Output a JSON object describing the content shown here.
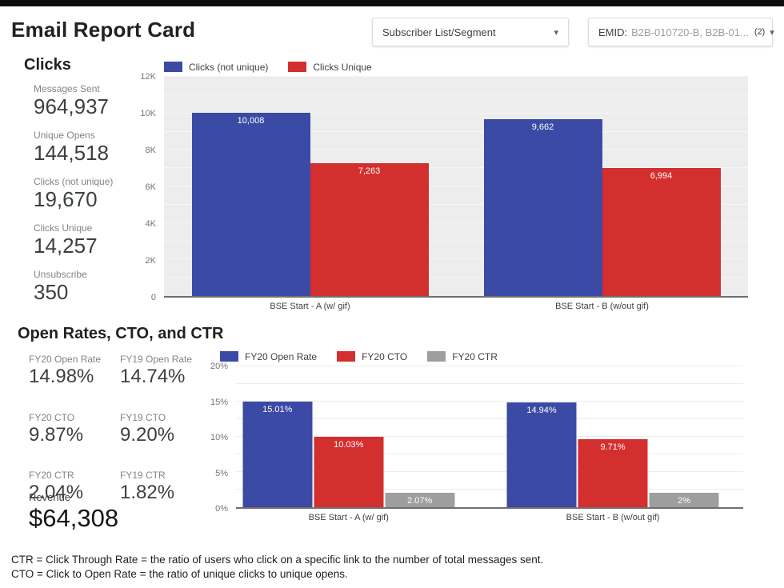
{
  "header": {
    "title": "Email Report Card"
  },
  "filters": {
    "subscriber_label": "Subscriber List/Segment",
    "emid_label": "EMID:",
    "emid_value": "B2B-010720-B, B2B-01...",
    "emid_count": "(2)",
    "caret": "▾"
  },
  "clicks_section": {
    "heading": "Clicks",
    "stats": [
      {
        "label": "Messages Sent",
        "value": "964,937"
      },
      {
        "label": "Unique Opens",
        "value": "144,518"
      },
      {
        "label": "Clicks (not unique)",
        "value": "19,670"
      },
      {
        "label": "Clicks Unique",
        "value": "14,257"
      },
      {
        "label": "Unsubscribe",
        "value": "350"
      }
    ]
  },
  "rates_section": {
    "heading": "Open Rates, CTO, and CTR",
    "stats": [
      {
        "label": "FY20 Open Rate",
        "value": "14.98%"
      },
      {
        "label": "FY19 Open Rate",
        "value": "14.74%"
      },
      {
        "label": "FY20 CTO",
        "value": "9.87%"
      },
      {
        "label": "FY19 CTO",
        "value": "9.20%"
      },
      {
        "label": "FY20 CTR",
        "value": "2.04%"
      },
      {
        "label": "FY19 CTR",
        "value": "1.82%"
      }
    ],
    "revenue": {
      "label": "Revenue",
      "value": "$64,308"
    }
  },
  "footnotes": [
    "CTR = Click Through Rate = the ratio of users who click on a specific link to the number of total messages sent.",
    "CTO = Click to Open Rate = the ratio of unique clicks to unique opens."
  ],
  "chart_data": [
    {
      "type": "bar",
      "title": "Clicks",
      "categories": [
        "BSE Start - A (w/ gif)",
        "BSE Start - B (w/out gif)"
      ],
      "series": [
        {
          "name": "Clicks (not unique)",
          "color": "#3b4aa5",
          "values": [
            10008,
            9662
          ],
          "labels": [
            "10,008",
            "9,662"
          ]
        },
        {
          "name": "Clicks Unique",
          "color": "#d32f2f",
          "values": [
            7263,
            6994
          ],
          "labels": [
            "7,263",
            "6,994"
          ]
        }
      ],
      "xlabel": "",
      "ylabel": "",
      "ylim": [
        0,
        12000
      ],
      "yticks": [
        {
          "label": "0",
          "value": 0
        },
        {
          "label": "2K",
          "value": 2000
        },
        {
          "label": "4K",
          "value": 4000
        },
        {
          "label": "6K",
          "value": 6000
        },
        {
          "label": "8K",
          "value": 8000
        },
        {
          "label": "10K",
          "value": 10000
        },
        {
          "label": "12K",
          "value": 12000
        }
      ],
      "grid": true,
      "grid_step": 1000,
      "legend_position": "top"
    },
    {
      "type": "bar",
      "title": "Open Rates, CTO, and CTR",
      "categories": [
        "BSE Start - A (w/ gif)",
        "BSE Start - B (w/out gif)"
      ],
      "series": [
        {
          "name": "FY20 Open Rate",
          "color": "#3b4aa5",
          "values": [
            15.01,
            14.94
          ],
          "labels": [
            "15.01%",
            "14.94%"
          ]
        },
        {
          "name": "FY20 CTO",
          "color": "#d32f2f",
          "values": [
            10.03,
            9.71
          ],
          "labels": [
            "10.03%",
            "9.71%"
          ]
        },
        {
          "name": "FY20 CTR",
          "color": "#9e9e9e",
          "values": [
            2.07,
            2
          ],
          "labels": [
            "2.07%",
            "2%"
          ]
        }
      ],
      "xlabel": "",
      "ylabel": "",
      "ylim": [
        0,
        20
      ],
      "yticks": [
        {
          "label": "0%",
          "value": 0
        },
        {
          "label": "5%",
          "value": 5
        },
        {
          "label": "10%",
          "value": 10
        },
        {
          "label": "15%",
          "value": 15
        },
        {
          "label": "20%",
          "value": 20
        }
      ],
      "grid": true,
      "grid_step": 2.5,
      "legend_position": "top"
    }
  ]
}
